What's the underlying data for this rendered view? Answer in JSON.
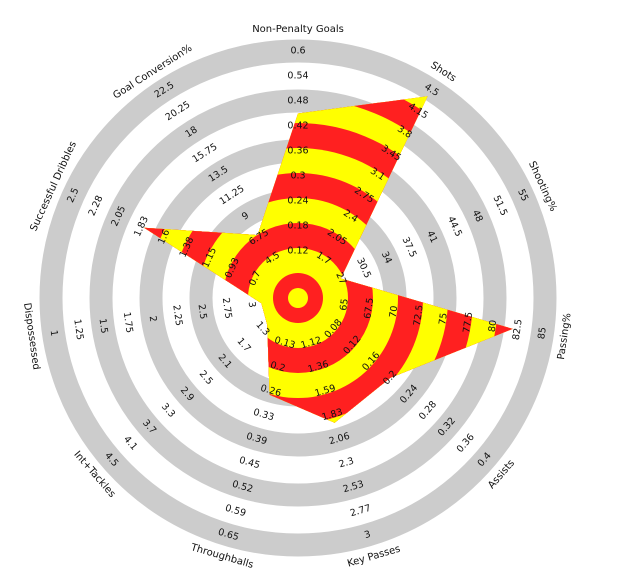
{
  "chart_data": {
    "type": "radar",
    "axes": [
      {
        "name": "Non-Penalty Goals",
        "ticks": [
          0.12,
          0.18,
          0.24,
          0.3,
          0.36,
          0.42,
          0.48,
          0.54,
          0.6
        ],
        "value": 0.45
      },
      {
        "name": "Shots",
        "ticks": [
          1.7,
          2.05,
          2.4,
          2.75,
          3.1,
          3.45,
          3.8,
          4.15,
          4.5
        ],
        "value": 4.4
      },
      {
        "name": "Shooting%",
        "ticks": [
          27,
          30.5,
          34,
          37.5,
          41,
          44.5,
          48,
          51.5,
          55
        ],
        "value": 27
      },
      {
        "name": "Passing%",
        "ticks": [
          65,
          67.5,
          70,
          72.5,
          75,
          77.5,
          80,
          82.5,
          85
        ],
        "value": 82
      },
      {
        "name": "Assists",
        "ticks": [
          0.08,
          0.12,
          0.16,
          0.2,
          0.24,
          0.28,
          0.32,
          0.36,
          0.4
        ],
        "value": 0.2
      },
      {
        "name": "Key Passes",
        "ticks": [
          1.12,
          1.36,
          1.59,
          1.83,
          2.06,
          2.3,
          2.53,
          2.77,
          3
        ],
        "value": 1.9
      },
      {
        "name": "Throughballs",
        "ticks": [
          0.13,
          0.2,
          0.26,
          0.33,
          0.39,
          0.45,
          0.52,
          0.59,
          0.65
        ],
        "value": 0.27
      },
      {
        "name": "Int+Tackles",
        "ticks": [
          1.3,
          1.7,
          2.1,
          2.5,
          2.9,
          3.3,
          3.7,
          4.1,
          4.5
        ],
        "value": 1.2
      },
      {
        "name": "Dispossessed",
        "ticks": [
          3,
          2.75,
          2.5,
          2.25,
          2,
          1.75,
          1.5,
          1.25,
          1
        ],
        "value": 3.1
      },
      {
        "name": "Successful Dribbles",
        "ticks": [
          0.7,
          0.93,
          1.15,
          1.38,
          1.6,
          1.83,
          2.05,
          2.28,
          2.5
        ],
        "value": 1.8
      },
      {
        "name": "Goal Conversion%",
        "ticks": [
          4.5,
          6.75,
          9,
          11.25,
          13.5,
          15.75,
          18,
          20.25,
          22.5
        ],
        "value": 7
      }
    ],
    "ring_color": "#cccccc",
    "stripe_colors": [
      "#ff2020",
      "#ffff00"
    ]
  }
}
